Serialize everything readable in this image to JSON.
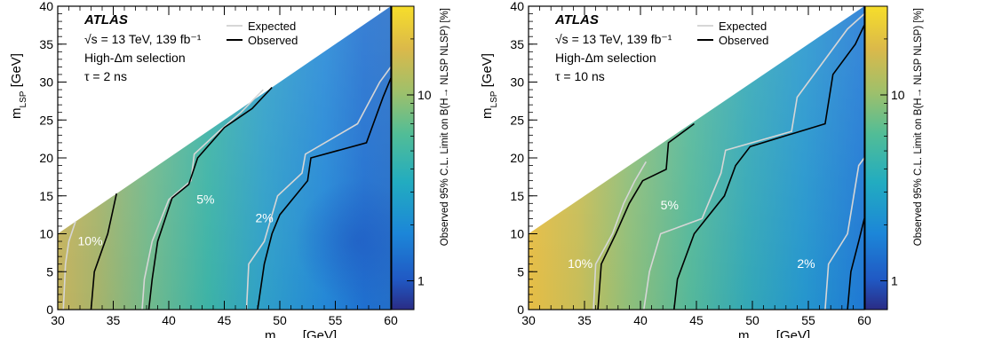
{
  "chart_data": [
    {
      "type": "heatmap",
      "xlabel": "m_NLSP [GeV]",
      "ylabel": "m_LSP [GeV]",
      "xlim": [
        30,
        60
      ],
      "ylim": [
        0,
        40
      ],
      "xticks": [
        30,
        35,
        40,
        45,
        50,
        55,
        60
      ],
      "yticks": [
        0,
        5,
        10,
        15,
        20,
        25,
        30,
        35,
        40
      ],
      "colorbar": {
        "label": "Observed 95% C.L. Limit on B(H→ NLSP NLSP) [%]",
        "scale": "log",
        "range": [
          0.7,
          30
        ],
        "ticks": [
          1,
          10
        ]
      },
      "annotations": {
        "experiment": "ATLAS",
        "energy": "√s = 13 TeV, 139 fb⁻¹",
        "selection": "High-Δm selection",
        "lifetime": "τ = 2 ns"
      },
      "legend": {
        "position": "top-right",
        "entries": [
          "Expected",
          "Observed"
        ]
      },
      "contour_labels": [
        {
          "text": "10%",
          "x": 31.8,
          "y": 8.5
        },
        {
          "text": "5%",
          "x": 42.5,
          "y": 14.0
        },
        {
          "text": "2%",
          "x": 47.8,
          "y": 11.5
        }
      ],
      "contours": {
        "expected": [
          [
            [
              30.5,
              0
            ],
            [
              30.7,
              6
            ],
            [
              31.0,
              9
            ],
            [
              31.6,
              11.6
            ]
          ],
          [
            [
              37.6,
              0
            ],
            [
              37.8,
              4
            ],
            [
              38.5,
              9
            ],
            [
              40.0,
              14.5
            ],
            [
              42.0,
              17
            ],
            [
              42.3,
              20.5
            ],
            [
              44.5,
              23.5
            ],
            [
              46.5,
              26
            ],
            [
              48.5,
              29
            ]
          ],
          [
            [
              47.0,
              0
            ],
            [
              47.2,
              6
            ],
            [
              48.6,
              9
            ],
            [
              49.8,
              15
            ],
            [
              52.0,
              18
            ],
            [
              52.3,
              20.5
            ],
            [
              57.0,
              24.5
            ],
            [
              59.0,
              30
            ],
            [
              60,
              32
            ]
          ]
        ],
        "observed": [
          [
            [
              33.0,
              0
            ],
            [
              33.3,
              5
            ],
            [
              34.5,
              10
            ],
            [
              35.3,
              15.3
            ]
          ],
          [
            [
              38.2,
              0
            ],
            [
              38.5,
              4
            ],
            [
              39.0,
              9
            ],
            [
              40.3,
              14.7
            ],
            [
              41.8,
              16.5
            ],
            [
              42.6,
              20
            ],
            [
              45.0,
              24
            ],
            [
              47.5,
              26.5
            ],
            [
              49.3,
              29.3
            ]
          ],
          [
            [
              48.0,
              0
            ],
            [
              48.6,
              6
            ],
            [
              49.3,
              10
            ],
            [
              50.0,
              12.5
            ],
            [
              52.5,
              17
            ],
            [
              52.8,
              20
            ],
            [
              57.8,
              22
            ],
            [
              59.3,
              28
            ],
            [
              60,
              30.5
            ]
          ]
        ]
      }
    },
    {
      "type": "heatmap",
      "xlabel": "m_NLSP [GeV]",
      "ylabel": "m_LSP [GeV]",
      "xlim": [
        30,
        60
      ],
      "ylim": [
        0,
        40
      ],
      "xticks": [
        30,
        35,
        40,
        45,
        50,
        55,
        60
      ],
      "yticks": [
        0,
        5,
        10,
        15,
        20,
        25,
        30,
        35,
        40
      ],
      "colorbar": {
        "label": "Observed 95% C.L. Limit on B(H→ NLSP NLSP) [%]",
        "scale": "log",
        "range": [
          0.7,
          30
        ],
        "ticks": [
          1,
          10
        ]
      },
      "annotations": {
        "experiment": "ATLAS",
        "energy": "√s = 13 TeV, 139 fb⁻¹",
        "selection": "High-Δm selection",
        "lifetime": "τ = 10 ns"
      },
      "legend": {
        "position": "top-right",
        "entries": [
          "Expected",
          "Observed"
        ]
      },
      "contour_labels": [
        {
          "text": "10%",
          "x": 33.5,
          "y": 5.5
        },
        {
          "text": "5%",
          "x": 41.8,
          "y": 13.2
        },
        {
          "text": "2%",
          "x": 54.0,
          "y": 5.5
        }
      ],
      "contours": {
        "expected": [
          [
            [
              35.8,
              0
            ],
            [
              36.0,
              6
            ],
            [
              37.5,
              10
            ],
            [
              38.5,
              14
            ],
            [
              39.5,
              17
            ],
            [
              40.5,
              19.5
            ]
          ],
          [
            [
              40.3,
              0
            ],
            [
              40.8,
              5
            ],
            [
              41.8,
              10
            ],
            [
              45.5,
              12
            ],
            [
              47.2,
              18
            ],
            [
              47.6,
              21
            ],
            [
              53.5,
              23.5
            ],
            [
              54.0,
              28
            ],
            [
              58.5,
              37
            ],
            [
              60,
              39
            ]
          ],
          [
            [
              56.5,
              0
            ],
            [
              56.8,
              6
            ],
            [
              58.5,
              10
            ],
            [
              59.5,
              19
            ],
            [
              60,
              20
            ]
          ]
        ],
        "observed": [
          [
            [
              36.2,
              0
            ],
            [
              36.5,
              6
            ],
            [
              37.8,
              10
            ],
            [
              39.0,
              14
            ],
            [
              40.2,
              17
            ],
            [
              42.3,
              18.5
            ],
            [
              42.5,
              22
            ],
            [
              44.8,
              24.5
            ]
          ],
          [
            [
              43.0,
              0
            ],
            [
              43.3,
              4
            ],
            [
              44.8,
              10
            ],
            [
              47.5,
              15
            ],
            [
              48.5,
              19
            ],
            [
              49.8,
              21.5
            ],
            [
              56.5,
              24.5
            ],
            [
              57.2,
              31
            ],
            [
              59.2,
              35
            ],
            [
              60,
              37.5
            ]
          ],
          [
            [
              58.5,
              0
            ],
            [
              58.8,
              5
            ],
            [
              59.5,
              9
            ],
            [
              60,
              12
            ]
          ]
        ]
      }
    }
  ]
}
